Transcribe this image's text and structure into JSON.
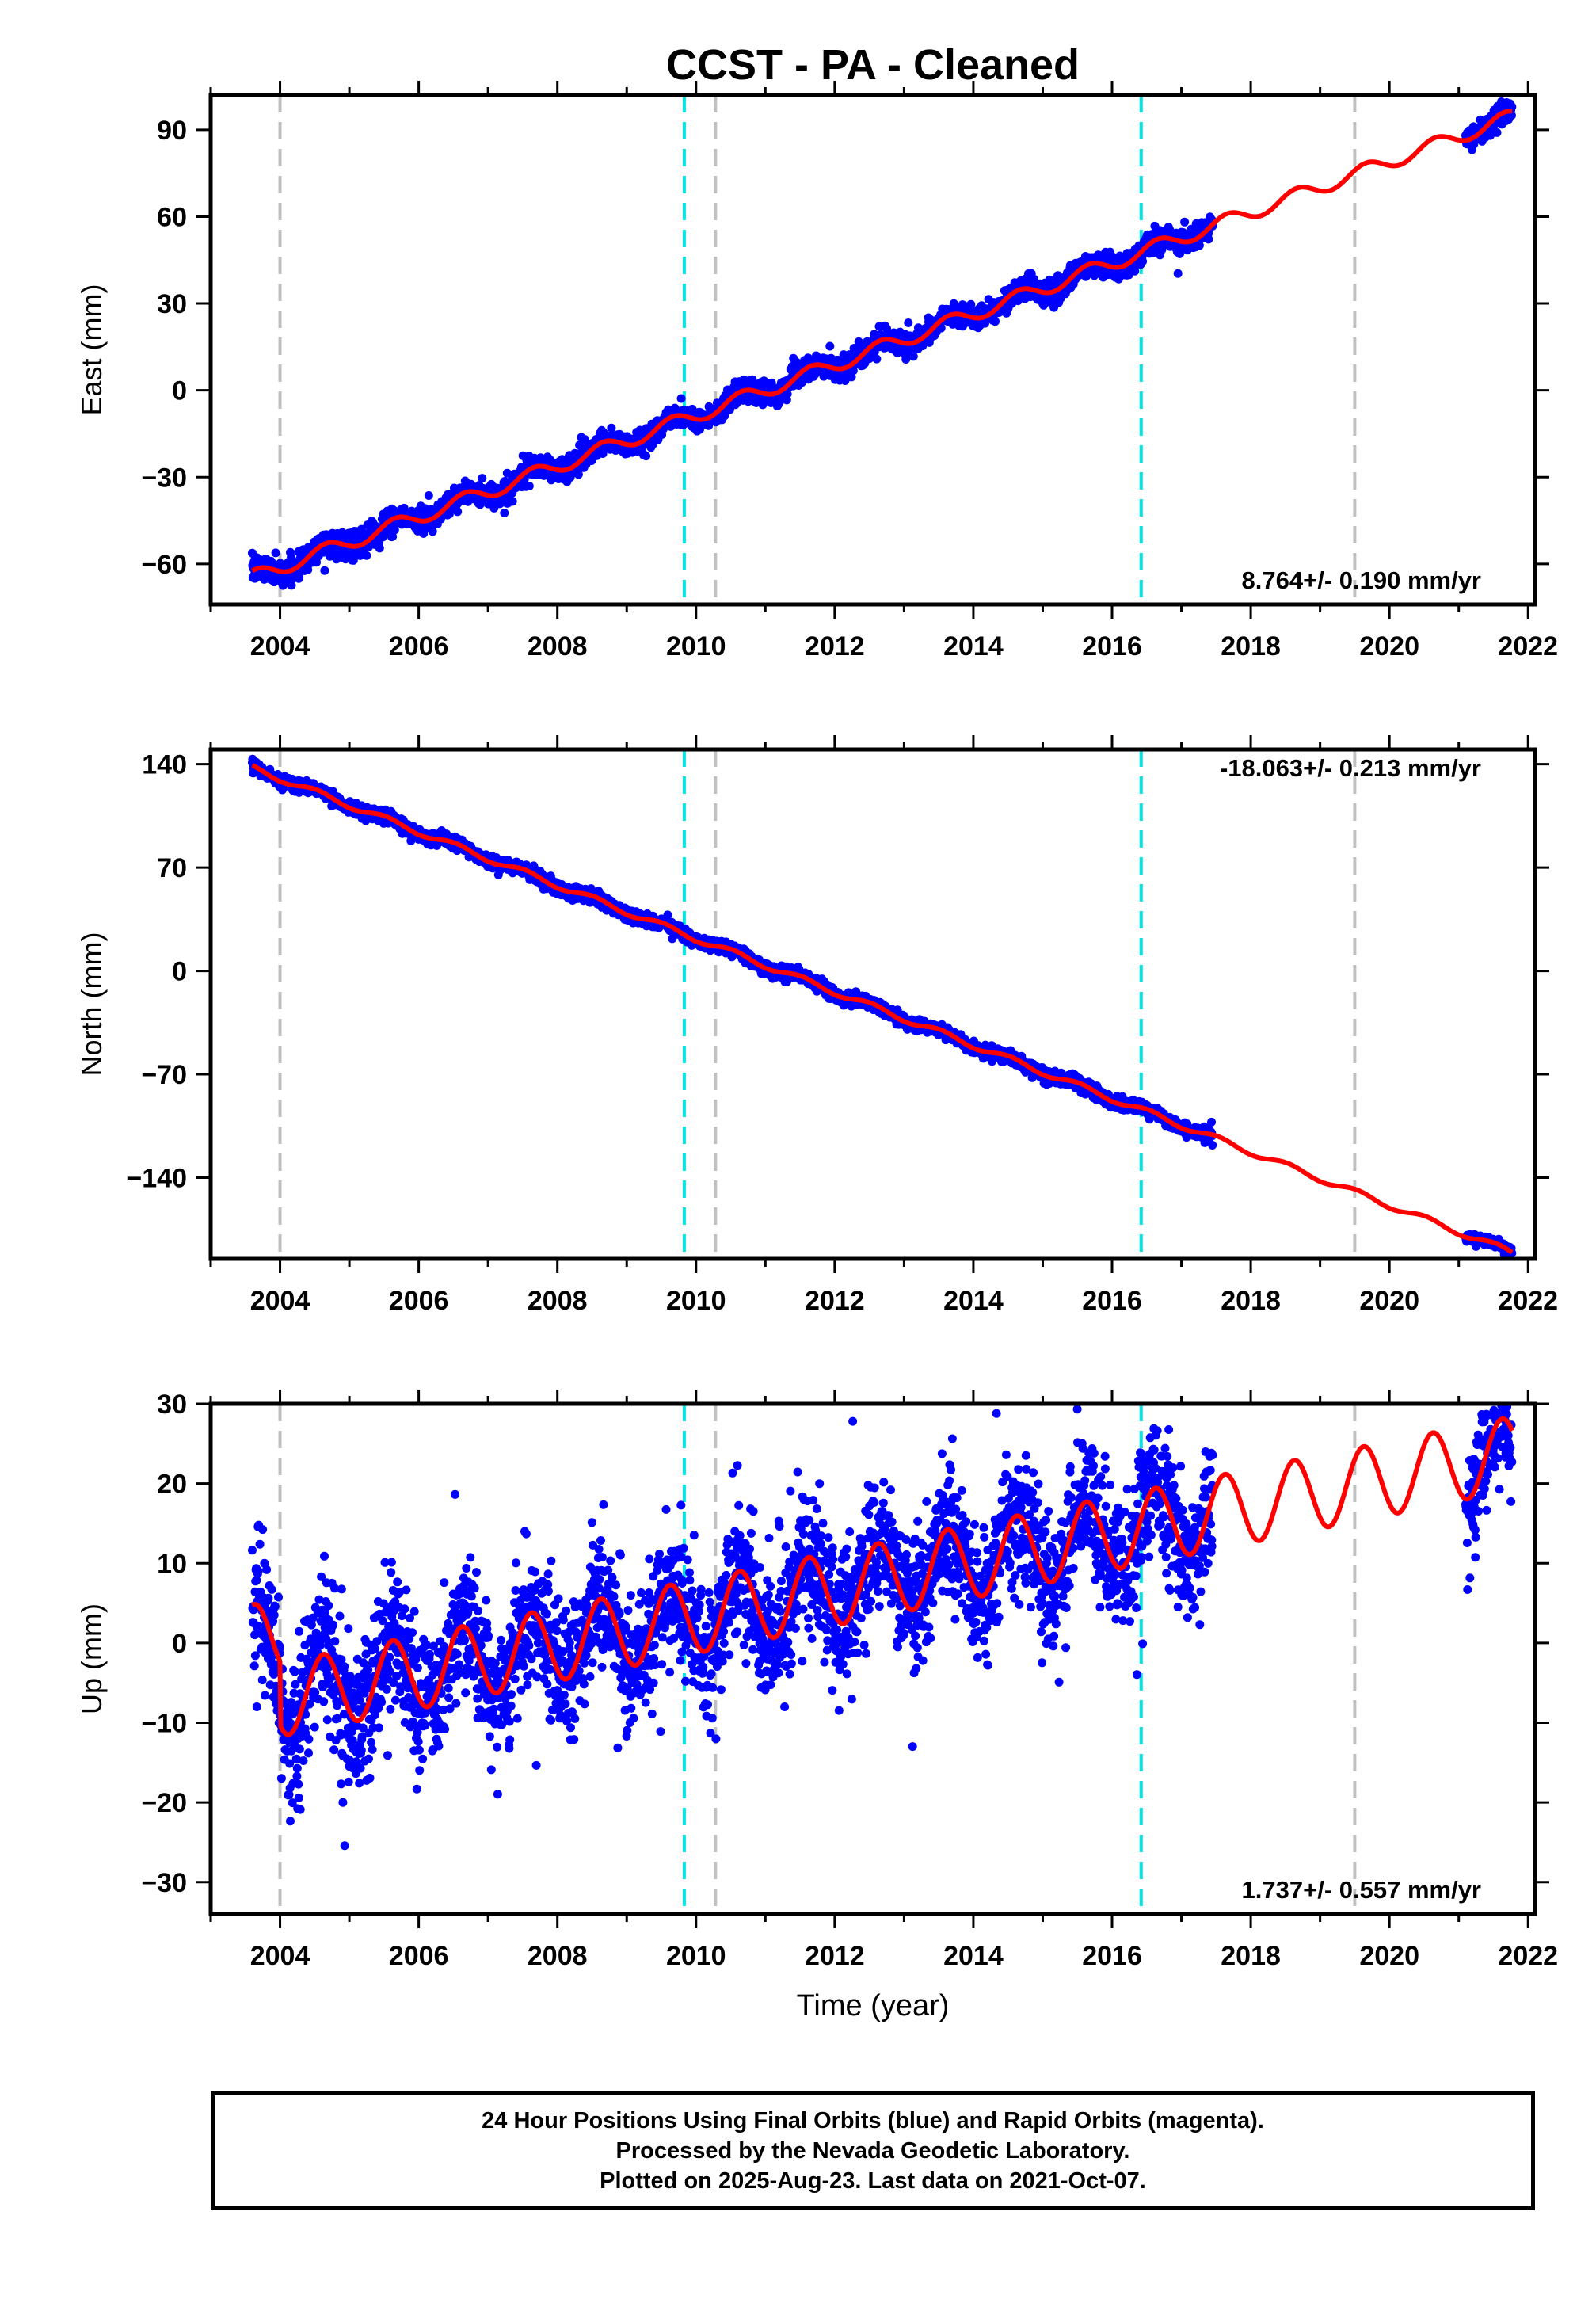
{
  "footer": {
    "line1": "24 Hour Positions Using Final Orbits (blue) and Rapid Orbits (magenta).",
    "line2": "Processed by the Nevada Geodetic Laboratory.",
    "line3": "Plotted on 2025-Aug-23. Last data on 2021-Oct-07."
  },
  "colors": {
    "data_points": "#0000ff",
    "model_fit": "#ff0000",
    "antenna_change": "#00e5e5",
    "equipment_change": "#c0c0c0"
  },
  "chart_data": [
    {
      "type": "scatter",
      "title": "CCST  - PA - Cleaned",
      "xlabel": "",
      "ylabel": "East (mm)",
      "xlim": [
        2003.0,
        2022.1
      ],
      "ylim": [
        -74,
        102
      ],
      "xticks": [
        2004,
        2006,
        2008,
        2010,
        2012,
        2014,
        2016,
        2018,
        2020,
        2022
      ],
      "yticks": [
        -60,
        -30,
        0,
        30,
        60,
        90
      ],
      "grid": false,
      "rate_label": "8.764+/- 0.190 mm/yr",
      "vertical_lines": [
        {
          "x": 2004.0,
          "style": "gray-dashed"
        },
        {
          "x": 2009.83,
          "style": "cyan-dashed"
        },
        {
          "x": 2010.28,
          "style": "gray-dashed"
        },
        {
          "x": 2016.42,
          "style": "cyan-dashed"
        },
        {
          "x": 2019.5,
          "style": "gray-dashed"
        }
      ],
      "model": {
        "intercept": -64.7,
        "ref_year": 2003.6,
        "rate": 8.764,
        "annual_amp": 2.5,
        "phase": 1.2,
        "offsets": [],
        "x_end": 2021.77
      },
      "data_segments": [
        {
          "x_start": 2003.6,
          "x_end": 2005.5,
          "scatter": 2.2
        },
        {
          "x_start": 2005.5,
          "x_end": 2017.45,
          "scatter": 1.9
        },
        {
          "x_start": 2021.1,
          "x_end": 2021.77,
          "scatter": 1.8
        }
      ]
    },
    {
      "type": "scatter",
      "title": "",
      "xlabel": "",
      "ylabel": "North (mm)",
      "xlim": [
        2003.0,
        2022.1
      ],
      "ylim": [
        -195,
        150
      ],
      "xticks": [
        2004,
        2006,
        2008,
        2010,
        2012,
        2014,
        2016,
        2018,
        2020,
        2022
      ],
      "yticks": [
        -140,
        -70,
        0,
        70,
        140
      ],
      "grid": false,
      "rate_label": "-18.063+/- 0.213 mm/yr",
      "vertical_lines": [
        {
          "x": 2004.0,
          "style": "gray-dashed"
        },
        {
          "x": 2009.83,
          "style": "cyan-dashed"
        },
        {
          "x": 2010.28,
          "style": "gray-dashed"
        },
        {
          "x": 2016.42,
          "style": "cyan-dashed"
        },
        {
          "x": 2019.5,
          "style": "gray-dashed"
        }
      ],
      "model": {
        "intercept": 137.5,
        "ref_year": 2003.6,
        "rate": -18.063,
        "annual_amp": 2.0,
        "phase": 2.0,
        "offsets": [],
        "x_end": 2021.77
      },
      "data_segments": [
        {
          "x_start": 2003.6,
          "x_end": 2005.55,
          "scatter": 2.0
        },
        {
          "x_start": 2005.55,
          "x_end": 2017.45,
          "scatter": 2.0
        },
        {
          "x_start": 2021.1,
          "x_end": 2021.77,
          "scatter": 1.8
        }
      ]
    },
    {
      "type": "scatter",
      "title": "",
      "xlabel": "Time (year)",
      "ylabel": "Up (mm)",
      "xlim": [
        2003.0,
        2022.1
      ],
      "ylim": [
        -34,
        30
      ],
      "xticks": [
        2004,
        2006,
        2008,
        2010,
        2012,
        2014,
        2016,
        2018,
        2020,
        2022
      ],
      "yticks": [
        -30,
        -20,
        -10,
        0,
        10,
        20,
        30
      ],
      "grid": false,
      "rate_label": "1.737+/- 0.557 mm/yr",
      "vertical_lines": [
        {
          "x": 2004.0,
          "style": "gray-dashed"
        },
        {
          "x": 2009.83,
          "style": "cyan-dashed"
        },
        {
          "x": 2010.28,
          "style": "gray-dashed"
        },
        {
          "x": 2016.42,
          "style": "cyan-dashed"
        },
        {
          "x": 2019.5,
          "style": "gray-dashed"
        }
      ],
      "model": {
        "intercept": 0.2,
        "ref_year": 2003.6,
        "rate": 1.737,
        "annual_amp": 4.6,
        "phase": 1.4,
        "offsets": [
          {
            "x": 2004.0,
            "dy": -8.0
          }
        ],
        "x_end": 2021.77
      },
      "data_segments": [
        {
          "x_start": 2003.6,
          "x_end": 2005.5,
          "scatter": 4.5
        },
        {
          "x_start": 2005.5,
          "x_end": 2017.45,
          "scatter": 4.2
        },
        {
          "x_start": 2021.1,
          "x_end": 2021.77,
          "scatter": 4.0
        }
      ]
    }
  ]
}
